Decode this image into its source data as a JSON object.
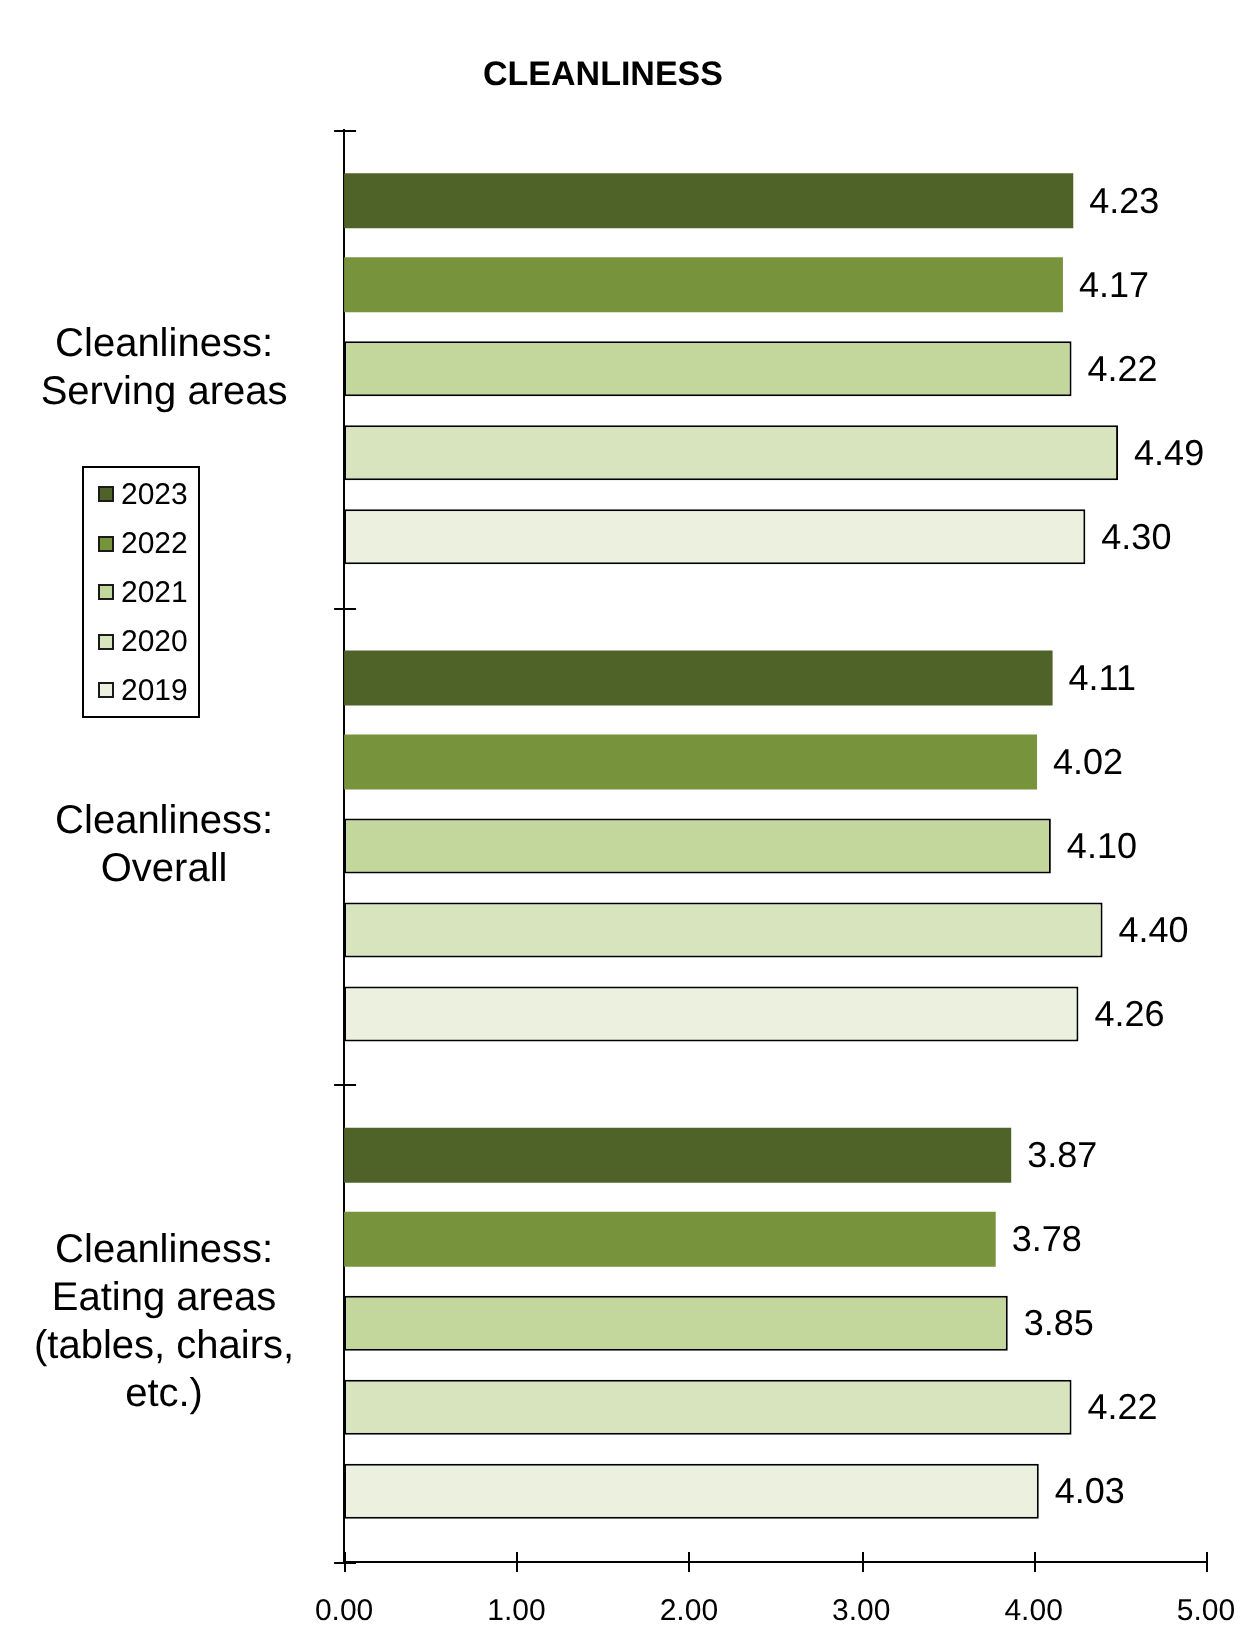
{
  "chart_data": {
    "type": "bar",
    "title": "CLEANLINESS",
    "orientation": "horizontal",
    "categories": [
      "Cleanliness: Serving areas",
      "Cleanliness: Overall",
      "Cleanliness: Eating areas (tables, chairs, etc.)"
    ],
    "series": [
      {
        "name": "2023",
        "color": "#4f6228",
        "values": [
          4.23,
          4.11,
          3.87
        ],
        "value_labels": [
          "4.23",
          "4.11",
          "3.87"
        ]
      },
      {
        "name": "2022",
        "color": "#77933c",
        "values": [
          4.17,
          4.02,
          3.78
        ],
        "value_labels": [
          "4.17",
          "4.02",
          "3.78"
        ]
      },
      {
        "name": "2021",
        "color": "#c3d69b",
        "values": [
          4.22,
          4.1,
          3.85
        ],
        "value_labels": [
          "4.22",
          "4.10",
          "3.85"
        ]
      },
      {
        "name": "2020",
        "color": "#d7e4bd",
        "values": [
          4.49,
          4.4,
          4.22
        ],
        "value_labels": [
          "4.49",
          "4.40",
          "4.22"
        ]
      },
      {
        "name": "2019",
        "color": "#ebf1de",
        "values": [
          4.3,
          4.26,
          4.03
        ],
        "value_labels": [
          "4.30",
          "4.26",
          "4.03"
        ]
      }
    ],
    "xlim": [
      0,
      5
    ],
    "xticks": [
      {
        "value": 0,
        "label": "0.00"
      },
      {
        "value": 1,
        "label": "1.00"
      },
      {
        "value": 2,
        "label": "2.00"
      },
      {
        "value": 3,
        "label": "3.00"
      },
      {
        "value": 4,
        "label": "4.00"
      },
      {
        "value": 5,
        "label": "5.00"
      }
    ],
    "legend": "left"
  }
}
